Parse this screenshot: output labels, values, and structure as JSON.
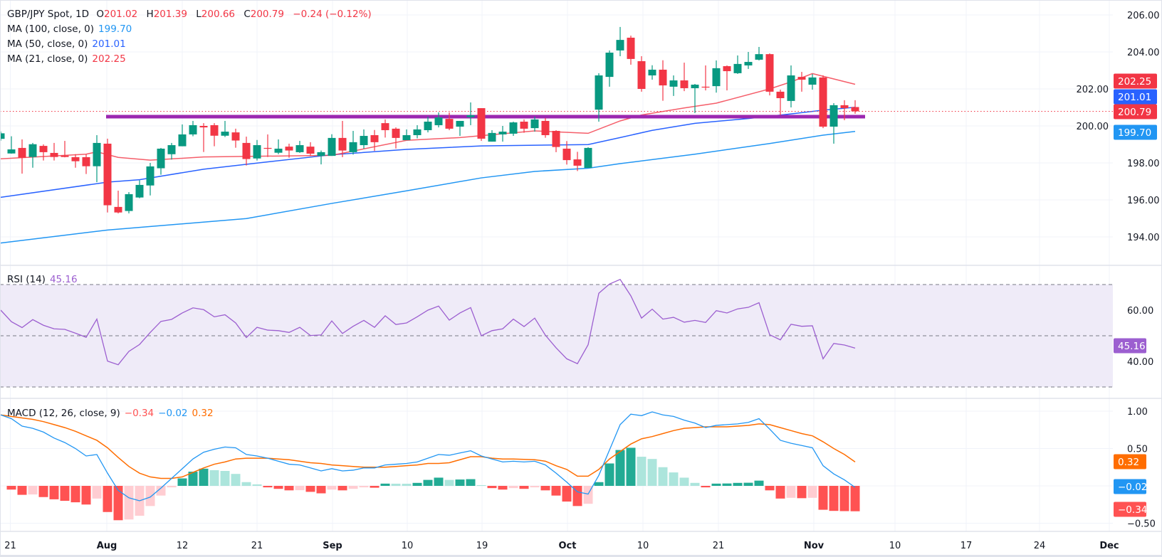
{
  "header": {
    "symbol": "GBP/JPY Spot, 1D",
    "o_label": "O",
    "o": "201.02",
    "h_label": "H",
    "h": "201.39",
    "l_label": "L",
    "l": "200.66",
    "c_label": "C",
    "c": "200.79",
    "change": "−0.24 (−0.12%)"
  },
  "ma": [
    {
      "label": "MA (100, close, 0)",
      "value": "199.70",
      "color": "#2196f3"
    },
    {
      "label": "MA (50, close, 0)",
      "value": "201.01",
      "color": "#2962ff"
    },
    {
      "label": "MA (21, close, 0)",
      "value": "202.25",
      "color": "#f23645"
    }
  ],
  "rsi": {
    "label": "RSI (14)",
    "value": "45.16",
    "color": "#9c5fd0"
  },
  "macd": {
    "label": "MACD (12, 26, close, 9)",
    "hist": "−0.34",
    "macd": "−0.02",
    "signal": "0.32"
  },
  "colors": {
    "up": "#089981",
    "down": "#f23645",
    "support": "#9c27b0",
    "macd_line": "#2196f3",
    "signal_line": "#ff6d00"
  },
  "price_axis_labels": [
    "206.00",
    "204.00",
    "202.00",
    "200.00",
    "198.00",
    "196.00",
    "194.00"
  ],
  "price_badges": [
    {
      "text": "202.25",
      "color": "#f23645"
    },
    {
      "text": "201.01",
      "color": "#2962ff"
    },
    {
      "text": "200.79",
      "color": "#f23645"
    },
    {
      "text": "199.70",
      "color": "#2196f3"
    }
  ],
  "rsi_axis_labels": [
    "60.00",
    "40.00"
  ],
  "rsi_badge": {
    "text": "45.16",
    "color": "#9c5fd0"
  },
  "macd_axis_labels": [
    "1.00",
    "0.50",
    "−0.50"
  ],
  "macd_badges": [
    {
      "text": "0.32",
      "color": "#ff6d00"
    },
    {
      "text": "−0.02",
      "color": "#2196f3"
    },
    {
      "text": "−0.34",
      "color": "#ff5252"
    }
  ],
  "time_axis_labels": [
    {
      "text": "21",
      "bold": false
    },
    {
      "text": "Aug",
      "bold": true
    },
    {
      "text": "12",
      "bold": false
    },
    {
      "text": "21",
      "bold": false
    },
    {
      "text": "Sep",
      "bold": true
    },
    {
      "text": "10",
      "bold": false
    },
    {
      "text": "19",
      "bold": false
    },
    {
      "text": "Oct",
      "bold": true
    },
    {
      "text": "10",
      "bold": false
    },
    {
      "text": "21",
      "bold": false
    },
    {
      "text": "Nov",
      "bold": true
    },
    {
      "text": "10",
      "bold": false
    },
    {
      "text": "17",
      "bold": false
    },
    {
      "text": "24",
      "bold": false
    },
    {
      "text": "Dec",
      "bold": true
    }
  ],
  "chart_data": [
    {
      "type": "candlestick",
      "title": "GBP/JPY Spot, 1D",
      "ylim": [
        193.5,
        206.5
      ],
      "yticks": [
        194,
        196,
        198,
        200,
        202,
        204,
        206
      ],
      "grid": true,
      "ohlc": [
        [
          199.3,
          199.7,
          199.2,
          199.6
        ],
        [
          198.51,
          199.44,
          198.5,
          198.73
        ],
        [
          198.81,
          199.27,
          197.42,
          198.28
        ],
        [
          198.32,
          199.08,
          197.74,
          199.01
        ],
        [
          198.92,
          199.0,
          198.13,
          198.58
        ],
        [
          198.54,
          199.08,
          198.13,
          198.32
        ],
        [
          198.4,
          199.19,
          198.3,
          198.32
        ],
        [
          198.31,
          198.47,
          197.74,
          198.09
        ],
        [
          198.31,
          198.47,
          197.4,
          197.82
        ],
        [
          197.82,
          199.5,
          196.96,
          199.08
        ],
        [
          199.04,
          199.31,
          195.32,
          195.71
        ],
        [
          195.62,
          196.5,
          195.27,
          195.32
        ],
        [
          195.4,
          196.42,
          195.27,
          196.31
        ],
        [
          196.13,
          197.06,
          196.09,
          196.81
        ],
        [
          196.78,
          198.0,
          196.24,
          197.81
        ],
        [
          197.71,
          198.81,
          197.36,
          198.77
        ],
        [
          198.47,
          199.08,
          198.18,
          198.96
        ],
        [
          198.9,
          200.08,
          198.9,
          199.54
        ],
        [
          199.54,
          200.27,
          199.44,
          200.04
        ],
        [
          200.0,
          200.15,
          198.59,
          199.92
        ],
        [
          200.04,
          200.15,
          198.9,
          199.47
        ],
        [
          199.47,
          200.27,
          199.4,
          199.69
        ],
        [
          199.65,
          199.85,
          198.82,
          199.21
        ],
        [
          199.08,
          199.42,
          197.86,
          198.21
        ],
        [
          198.24,
          199.24,
          198.13,
          198.96
        ],
        [
          198.81,
          199.54,
          198.32,
          198.77
        ],
        [
          198.55,
          199.27,
          198.47,
          198.77
        ],
        [
          198.88,
          199.04,
          198.28,
          198.67
        ],
        [
          198.58,
          199.19,
          198.54,
          198.96
        ],
        [
          198.88,
          199.12,
          198.37,
          198.5
        ],
        [
          198.38,
          198.67,
          197.92,
          198.58
        ],
        [
          198.38,
          199.55,
          198.38,
          199.35
        ],
        [
          199.35,
          200.27,
          198.31,
          198.67
        ],
        [
          198.58,
          199.73,
          198.45,
          199.12
        ],
        [
          198.96,
          199.81,
          198.77,
          199.46
        ],
        [
          199.5,
          199.78,
          198.65,
          199.12
        ],
        [
          200.15,
          200.35,
          199.37,
          199.77
        ],
        [
          199.85,
          199.92,
          198.78,
          199.35
        ],
        [
          199.23,
          199.81,
          199.23,
          199.5
        ],
        [
          199.5,
          200.04,
          199.33,
          199.81
        ],
        [
          199.77,
          200.5,
          199.65,
          200.23
        ],
        [
          200.04,
          200.73,
          199.92,
          200.46
        ],
        [
          200.38,
          200.73,
          199.77,
          199.85
        ],
        [
          199.96,
          200.27,
          199.46,
          200.27
        ],
        [
          200.47,
          201.27,
          200.04,
          200.58
        ],
        [
          200.96,
          200.96,
          199.19,
          199.31
        ],
        [
          199.15,
          199.77,
          199.15,
          199.62
        ],
        [
          199.54,
          200.0,
          199.15,
          199.69
        ],
        [
          199.58,
          200.23,
          199.46,
          200.19
        ],
        [
          200.23,
          200.35,
          199.63,
          199.85
        ],
        [
          199.88,
          200.5,
          199.69,
          200.35
        ],
        [
          200.27,
          200.42,
          199.36,
          199.5
        ],
        [
          199.73,
          199.77,
          198.58,
          198.86
        ],
        [
          198.77,
          199.18,
          197.91,
          198.15
        ],
        [
          198.19,
          198.6,
          197.56,
          197.85
        ],
        [
          197.73,
          198.85,
          197.73,
          198.81
        ],
        [
          200.88,
          202.85,
          200.23,
          202.73
        ],
        [
          202.65,
          204.08,
          202.12,
          203.96
        ],
        [
          204.08,
          205.35,
          203.77,
          204.65
        ],
        [
          204.77,
          204.88,
          203.31,
          203.62
        ],
        [
          203.5,
          203.77,
          201.85,
          202.0
        ],
        [
          202.73,
          203.28,
          202.5,
          203.04
        ],
        [
          203.04,
          203.55,
          201.36,
          202.19
        ],
        [
          202.12,
          202.73,
          201.62,
          202.46
        ],
        [
          202.46,
          203.42,
          201.88,
          202.04
        ],
        [
          202.04,
          202.27,
          200.69,
          202.23
        ],
        [
          202.12,
          203.27,
          201.92,
          202.08
        ],
        [
          202.15,
          203.54,
          201.8,
          203.12
        ],
        [
          203.23,
          203.27,
          201.92,
          202.96
        ],
        [
          202.85,
          203.81,
          202.81,
          203.35
        ],
        [
          203.27,
          204.0,
          203.08,
          203.46
        ],
        [
          203.58,
          204.27,
          203.54,
          203.88
        ],
        [
          203.88,
          203.92,
          201.65,
          201.85
        ],
        [
          201.85,
          201.96,
          200.58,
          201.5
        ],
        [
          201.35,
          203.27,
          201.0,
          202.73
        ],
        [
          202.65,
          202.92,
          201.85,
          202.5
        ],
        [
          202.23,
          202.81,
          201.96,
          202.62
        ],
        [
          202.62,
          202.73,
          199.88,
          199.96
        ],
        [
          199.96,
          201.23,
          199.04,
          201.12
        ],
        [
          201.12,
          201.39,
          200.31,
          200.96
        ],
        [
          201.02,
          201.39,
          200.66,
          200.79
        ]
      ],
      "moving_averages": [
        {
          "name": "MA (100, close, 0)",
          "points": [
            [
              0,
              193.67
            ],
            [
              10,
              194.37
            ],
            [
              23,
              194.99
            ],
            [
              31,
              195.81
            ],
            [
              38,
              196.49
            ],
            [
              45,
              197.19
            ],
            [
              50,
              197.54
            ],
            [
              55,
              197.71
            ],
            [
              58,
              197.96
            ],
            [
              65,
              198.47
            ],
            [
              72,
              199.05
            ],
            [
              77,
              199.5
            ],
            [
              80,
              199.7
            ]
          ]
        },
        {
          "name": "MA (50, close, 0)",
          "points": [
            [
              0,
              196.14
            ],
            [
              10,
              196.96
            ],
            [
              13,
              197.09
            ],
            [
              19,
              197.66
            ],
            [
              24,
              197.99
            ],
            [
              31,
              198.44
            ],
            [
              38,
              198.73
            ],
            [
              45,
              198.92
            ],
            [
              55,
              198.99
            ],
            [
              58,
              199.37
            ],
            [
              61,
              199.76
            ],
            [
              65,
              200.14
            ],
            [
              70,
              200.4
            ],
            [
              74,
              200.65
            ],
            [
              77,
              200.85
            ],
            [
              80,
              201.01
            ]
          ]
        },
        {
          "name": "MA (21, close, 0)",
          "points": [
            [
              0,
              198.22
            ],
            [
              8,
              198.47
            ],
            [
              9,
              198.6
            ],
            [
              11,
              198.3
            ],
            [
              14,
              198.15
            ],
            [
              19,
              198.32
            ],
            [
              31,
              198.41
            ],
            [
              38,
              199.22
            ],
            [
              43,
              199.37
            ],
            [
              50,
              199.73
            ],
            [
              55,
              199.6
            ],
            [
              58,
              200.27
            ],
            [
              60,
              200.59
            ],
            [
              64,
              200.97
            ],
            [
              67,
              201.23
            ],
            [
              72,
              202.0
            ],
            [
              74,
              202.38
            ],
            [
              76,
              202.83
            ],
            [
              80,
              202.25
            ]
          ]
        }
      ],
      "horizontal_lines": [
        {
          "price": 200.5,
          "from_bar": 10,
          "to_bar": 81,
          "style": "solid-thick"
        },
        {
          "price": 200.79,
          "style": "dotted"
        }
      ]
    },
    {
      "type": "line",
      "title": "RSI (14)",
      "ylim": [
        24,
        78
      ],
      "levels": [
        70,
        50,
        30
      ],
      "yticks": [
        40,
        60
      ],
      "values": [
        60.0,
        55.5,
        53.2,
        56.3,
        54.1,
        52.7,
        52.5,
        51.0,
        49.4,
        56.5,
        40.1,
        38.7,
        43.9,
        46.6,
        51.3,
        55.6,
        56.4,
        58.9,
        60.9,
        60.2,
        57.4,
        58.2,
        55.0,
        49.3,
        53.3,
        52.2,
        52.0,
        51.3,
        53.3,
        50.1,
        50.3,
        55.8,
        50.9,
        53.7,
        56.0,
        53.3,
        57.8,
        54.4,
        55.0,
        57.4,
        60.0,
        61.6,
        56.1,
        58.9,
        61.0,
        50.0,
        52.0,
        52.7,
        56.5,
        53.6,
        56.9,
        50.2,
        45.3,
        41.0,
        39.1,
        46.5,
        66.6,
        70.2,
        72.0,
        65.6,
        56.9,
        60.4,
        56.5,
        57.2,
        55.3,
        56.0,
        55.2,
        59.8,
        58.9,
        60.5,
        61.1,
        62.9,
        50.4,
        48.4,
        54.5,
        53.7,
        53.9,
        41.0,
        47.0,
        46.4,
        45.16
      ]
    },
    {
      "type": "bar+line",
      "title": "MACD (12, 26, close, 9)",
      "ylim": [
        -0.55,
        1.1
      ],
      "yticks": [
        -0.5,
        0.5,
        1.0
      ],
      "histogram": [
        null,
        -0.05,
        -0.12,
        -0.115,
        -0.15,
        -0.18,
        -0.2,
        -0.22,
        -0.25,
        -0.17,
        -0.35,
        -0.46,
        -0.45,
        -0.4,
        -0.27,
        -0.13,
        -0.02,
        0.1,
        0.19,
        0.23,
        0.21,
        0.2,
        0.16,
        0.05,
        0.02,
        -0.02,
        -0.04,
        -0.06,
        -0.058,
        -0.08,
        -0.1,
        -0.05,
        -0.06,
        -0.04,
        -0.02,
        -0.025,
        0.03,
        0.029,
        0.028,
        0.04,
        0.08,
        0.11,
        0.08,
        0.085,
        0.09,
        0.01,
        -0.03,
        -0.05,
        -0.03,
        -0.04,
        -0.02,
        -0.06,
        -0.13,
        -0.21,
        -0.27,
        -0.24,
        0.05,
        0.3,
        0.48,
        0.51,
        0.39,
        0.36,
        0.25,
        0.18,
        0.11,
        0.04,
        -0.02,
        0.03,
        0.032,
        0.04,
        0.042,
        0.07,
        -0.06,
        -0.17,
        -0.16,
        -0.165,
        -0.16,
        -0.32,
        -0.335,
        -0.338,
        -0.34
      ],
      "macd": [
        0.95,
        0.9,
        0.8,
        0.77,
        0.72,
        0.64,
        0.58,
        0.5,
        0.4,
        0.42,
        0.17,
        -0.06,
        -0.16,
        -0.2,
        -0.15,
        -0.03,
        0.1,
        0.23,
        0.36,
        0.45,
        0.49,
        0.52,
        0.51,
        0.42,
        0.4,
        0.37,
        0.33,
        0.29,
        0.28,
        0.24,
        0.2,
        0.23,
        0.2,
        0.21,
        0.24,
        0.24,
        0.28,
        0.29,
        0.3,
        0.32,
        0.37,
        0.42,
        0.41,
        0.44,
        0.47,
        0.4,
        0.36,
        0.32,
        0.33,
        0.32,
        0.33,
        0.28,
        0.17,
        0.05,
        -0.08,
        -0.11,
        0.14,
        0.48,
        0.82,
        0.96,
        0.94,
        0.99,
        0.95,
        0.93,
        0.88,
        0.84,
        0.78,
        0.81,
        0.82,
        0.83,
        0.85,
        0.9,
        0.76,
        0.61,
        0.57,
        0.54,
        0.51,
        0.27,
        0.16,
        0.08,
        -0.02
      ],
      "signal": [
        0.95,
        0.93,
        0.91,
        0.89,
        0.86,
        0.82,
        0.78,
        0.73,
        0.67,
        0.61,
        0.51,
        0.38,
        0.26,
        0.17,
        0.12,
        0.1,
        0.1,
        0.12,
        0.18,
        0.24,
        0.29,
        0.32,
        0.36,
        0.37,
        0.37,
        0.37,
        0.36,
        0.35,
        0.33,
        0.31,
        0.3,
        0.28,
        0.27,
        0.26,
        0.25,
        0.25,
        0.25,
        0.26,
        0.27,
        0.28,
        0.3,
        0.3,
        0.31,
        0.35,
        0.39,
        0.39,
        0.37,
        0.36,
        0.36,
        0.355,
        0.35,
        0.33,
        0.27,
        0.22,
        0.13,
        0.13,
        0.22,
        0.36,
        0.46,
        0.56,
        0.63,
        0.66,
        0.7,
        0.74,
        0.77,
        0.78,
        0.79,
        0.79,
        0.79,
        0.8,
        0.81,
        0.83,
        0.82,
        0.78,
        0.74,
        0.7,
        0.67,
        0.59,
        0.5,
        0.42,
        0.32
      ]
    }
  ]
}
